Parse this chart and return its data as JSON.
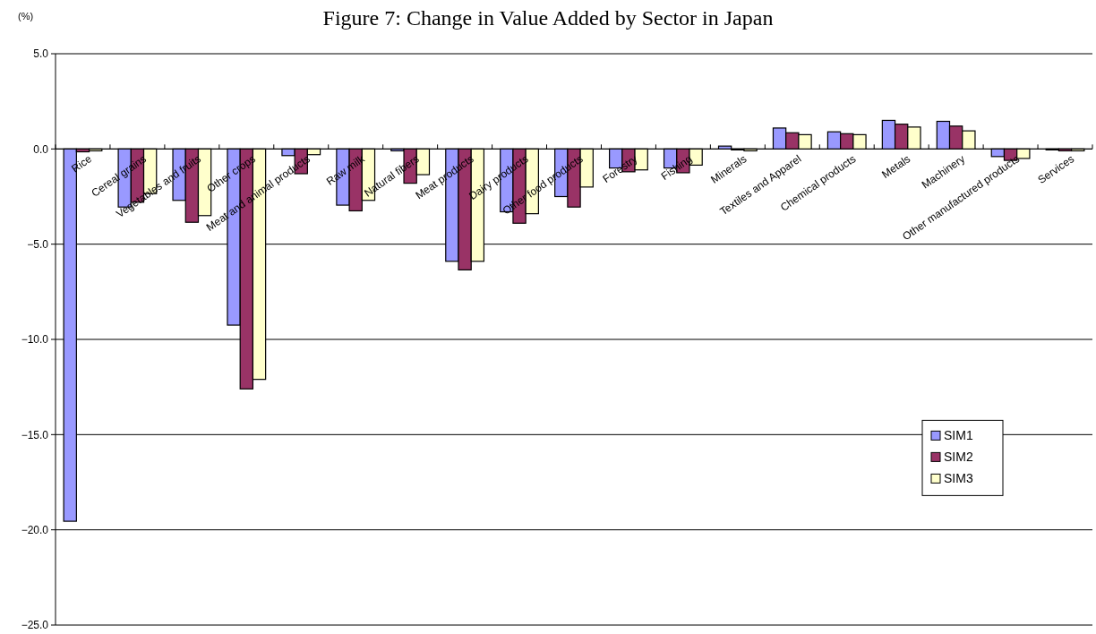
{
  "chart_data": {
    "type": "bar",
    "title": "Figure 7: Change in Value Added by Sector in Japan",
    "ylabel": "(%)",
    "categories": [
      "Rice",
      "Cereal grains",
      "Vegetables and fruits",
      "Other crops",
      "Meat and animal products",
      "Raw milk",
      "Natural fibers",
      "Meat products",
      "Dairy products",
      "Other food products",
      "Forestry",
      "Fishing",
      "Minerals",
      "Textiles and Apparel",
      "Chemical products",
      "Metals",
      "Machinery",
      "Other manufactured products",
      "Services"
    ],
    "series": [
      {
        "name": "SIM1",
        "color": "#9999ff",
        "values": [
          -19.55,
          -3.05,
          -2.7,
          -9.25,
          -0.35,
          -2.95,
          -0.1,
          -5.9,
          -3.3,
          -2.5,
          -1.0,
          -1.0,
          0.15,
          1.1,
          0.9,
          1.5,
          1.45,
          -0.4,
          -0.05
        ]
      },
      {
        "name": "SIM2",
        "color": "#993366",
        "values": [
          -0.15,
          -2.8,
          -3.85,
          -12.6,
          -1.3,
          -3.25,
          -1.8,
          -6.35,
          -3.9,
          -3.05,
          -1.2,
          -1.25,
          -0.05,
          0.85,
          0.8,
          1.3,
          1.2,
          -0.6,
          -0.1
        ]
      },
      {
        "name": "SIM3",
        "color": "#ffffcc",
        "values": [
          -0.1,
          -2.35,
          -3.5,
          -12.1,
          -0.3,
          -2.7,
          -1.35,
          -5.9,
          -3.4,
          -2.0,
          -1.1,
          -0.85,
          -0.1,
          0.75,
          0.75,
          1.15,
          0.95,
          -0.5,
          -0.1
        ]
      }
    ],
    "ylim": [
      -25,
      5
    ],
    "yticks": [
      {
        "value": -25,
        "label": "−25.0"
      },
      {
        "value": -20,
        "label": "−20.0"
      },
      {
        "value": -15,
        "label": "−15.0"
      },
      {
        "value": -10,
        "label": "−10.0"
      },
      {
        "value": -5,
        "label": "−5.0"
      },
      {
        "value": 0,
        "label": "0.0"
      },
      {
        "value": 5,
        "label": "5.0"
      }
    ],
    "grid": "y",
    "legend": "bottom right"
  }
}
